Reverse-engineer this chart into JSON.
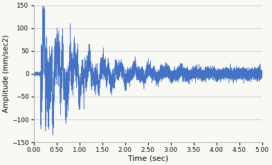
{
  "title": "",
  "xlabel": "Time (sec)",
  "ylabel": "Amplitude (mm/sec2)",
  "xlim": [
    0.0,
    5.0
  ],
  "ylim": [
    -150,
    150
  ],
  "xticks": [
    0.0,
    0.5,
    1.0,
    1.5,
    2.0,
    2.5,
    3.0,
    3.5,
    4.0,
    4.5,
    5.0
  ],
  "yticks": [
    -150,
    -100,
    -50,
    0,
    50,
    100,
    150
  ],
  "line_color": "#4472C4",
  "line_width": 0.4,
  "background_color": "#f8f8f5",
  "grid_color": "#c8c8c8",
  "sample_rate": 2000,
  "duration": 5.0,
  "impact_start": 0.15,
  "decay_rate": 1.2,
  "base_noise": 12.0,
  "seed": 7
}
